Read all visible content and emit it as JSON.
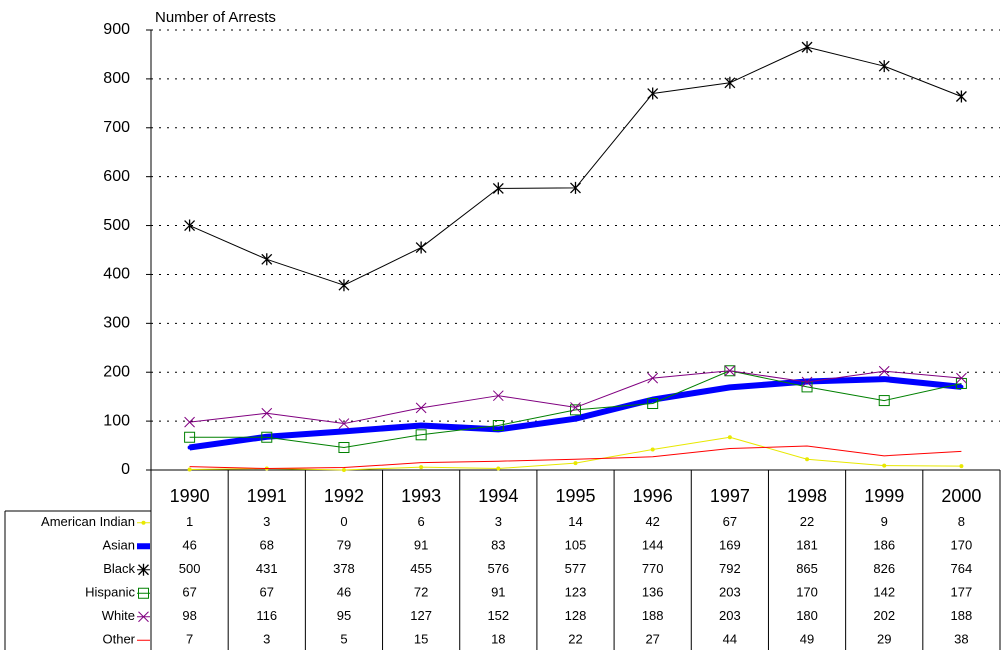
{
  "chart_data": {
    "type": "line",
    "y_label": "Number of Arrests",
    "categories": [
      "1990",
      "1991",
      "1992",
      "1993",
      "1994",
      "1995",
      "1996",
      "1997",
      "1998",
      "1999",
      "2000"
    ],
    "ylim": [
      0,
      900
    ],
    "yticks": [
      0,
      100,
      200,
      300,
      400,
      500,
      600,
      700,
      800,
      900
    ],
    "grid": true,
    "series": [
      {
        "name": "American Indian",
        "color": "#e8e800",
        "marker": "dot",
        "width": 1,
        "values": [
          1,
          3,
          0,
          6,
          3,
          14,
          42,
          67,
          22,
          9,
          8
        ]
      },
      {
        "name": "Asian",
        "color": "#0000ff",
        "marker": "dot",
        "width": 6,
        "values": [
          46,
          68,
          79,
          91,
          83,
          105,
          144,
          169,
          181,
          186,
          170
        ]
      },
      {
        "name": "Black",
        "color": "#000000",
        "marker": "asterisk",
        "width": 1,
        "values": [
          500,
          431,
          378,
          455,
          576,
          577,
          770,
          792,
          865,
          826,
          764
        ]
      },
      {
        "name": "Hispanic",
        "color": "#008000",
        "marker": "square",
        "width": 1,
        "values": [
          67,
          67,
          46,
          72,
          91,
          123,
          136,
          203,
          170,
          142,
          177
        ]
      },
      {
        "name": "White",
        "color": "#800080",
        "marker": "x",
        "width": 1,
        "values": [
          98,
          116,
          95,
          127,
          152,
          128,
          188,
          203,
          180,
          202,
          188
        ]
      },
      {
        "name": "Other",
        "color": "#ff0000",
        "marker": "none",
        "width": 1,
        "values": [
          7,
          3,
          5,
          15,
          18,
          22,
          27,
          44,
          49,
          29,
          38
        ]
      }
    ]
  }
}
